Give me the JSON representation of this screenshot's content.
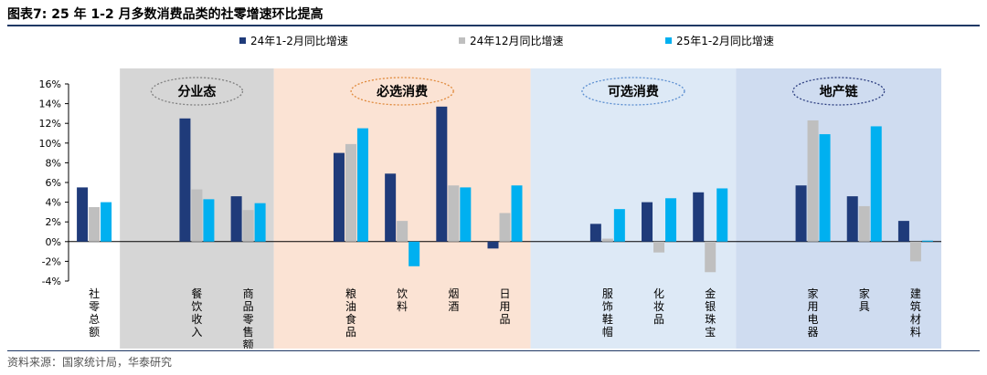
{
  "title": "图表7:  25 年 1-2 月多数消费品类的社零增速环比提高",
  "source": "资料来源：国家统计局，华泰研究",
  "colors": {
    "navy": "#1f3b7a",
    "gray": "#bfbfbf",
    "cyan": "#00b0f0",
    "band_gray": "#d6d6d6",
    "band_peach": "#fbe3d4",
    "band_lightblue": "#dde9f6",
    "band_blue": "#cfdcf0",
    "ellipse_gray": "#808080",
    "ellipse_orange": "#e08a3c",
    "ellipse_blue": "#5b8ed0",
    "ellipse_navy": "#2c3e80"
  },
  "chart_data": {
    "type": "bar",
    "title": "25 年 1-2 月多数消费品类的社零增速环比提高",
    "ylim": [
      -4,
      16
    ],
    "yticks": [
      "16%",
      "14%",
      "12%",
      "10%",
      "8%",
      "6%",
      "4%",
      "2%",
      "0%",
      "-2%",
      "-4%"
    ],
    "categories": [
      "社零总额",
      "",
      "餐饮收入",
      "商品零售额",
      "",
      "粮油食品",
      "饮料",
      "烟酒",
      "日用品",
      "",
      "服饰鞋帽",
      "化妆品",
      "金银珠宝",
      "",
      "家用电器",
      "家具",
      "建筑材料"
    ],
    "series": [
      {
        "name": "24年1-2月同比增速",
        "color_key": "navy",
        "values": [
          5.5,
          null,
          12.5,
          4.6,
          null,
          9.0,
          6.9,
          13.7,
          -0.7,
          null,
          1.8,
          4.0,
          5.0,
          null,
          5.7,
          4.6,
          2.1
        ]
      },
      {
        "name": "24年12月同比增速",
        "color_key": "gray",
        "values": [
          3.5,
          null,
          5.3,
          3.2,
          null,
          9.9,
          2.1,
          5.7,
          2.9,
          null,
          0.3,
          -1.1,
          -3.1,
          null,
          12.3,
          3.6,
          -2.0
        ]
      },
      {
        "name": "25年1-2月同比增速",
        "color_key": "cyan",
        "values": [
          4.0,
          null,
          4.3,
          3.9,
          null,
          11.5,
          -2.5,
          5.5,
          5.7,
          null,
          3.3,
          4.4,
          5.4,
          null,
          10.9,
          11.7,
          0.1
        ]
      }
    ],
    "groups": [
      {
        "label": "分业态",
        "start": 1,
        "end": 3,
        "band_key": "band_gray",
        "ellipse_key": "ellipse_gray"
      },
      {
        "label": "必选消费",
        "start": 4,
        "end": 8,
        "band_key": "band_peach",
        "ellipse_key": "ellipse_orange"
      },
      {
        "label": "可选消费",
        "start": 9,
        "end": 12,
        "band_key": "band_lightblue",
        "ellipse_key": "ellipse_blue"
      },
      {
        "label": "地产链",
        "start": 13,
        "end": 16,
        "band_key": "band_blue",
        "ellipse_key": "ellipse_navy"
      }
    ]
  }
}
